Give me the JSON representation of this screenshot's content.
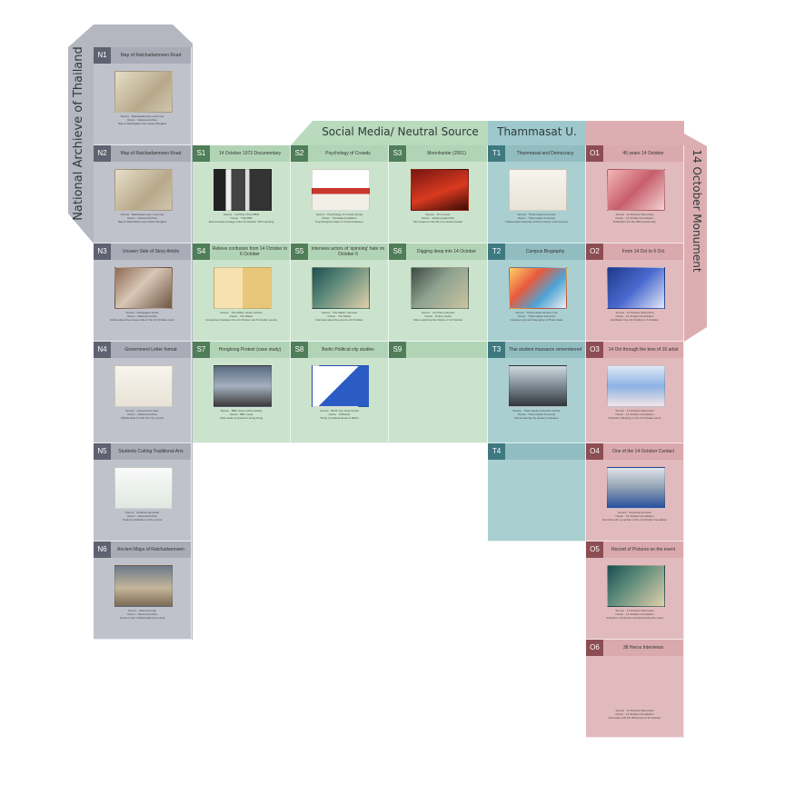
{
  "colors": {
    "national_archive": "#b4b6c0",
    "social_media": "#b9dabd",
    "thammasat": "#9ec8cb",
    "monument": "#dcaeb2"
  },
  "groups": {
    "national_archive": "National Archieve of Thailand",
    "social_media": "Social Media/ Neutral Source",
    "thammasat": "Thammasat U.",
    "monument": "14 October Monument"
  },
  "cells": {
    "N1": {
      "code": "N1",
      "title": "Map of Ratchadamnoen Road",
      "source": "Source  · Ratchadamnoen road map",
      "owner": "Owner  · National Archive",
      "note": "Map of Ratchadamnoen Road, Bangkok"
    },
    "N2": {
      "code": "N2",
      "title": "Map of Ratchadamnoen Road",
      "source": "Source  · Ratchadamnoen road map",
      "owner": "Owner  · National Archive",
      "note": "Map of Ratchadamnoen Road, Bangkok"
    },
    "N3": {
      "code": "N3",
      "title": "Unseen Side of Story Article",
      "source": "Source  · Newspaper article",
      "owner": "Owner  · National Archive",
      "note": "Article about the unseen side of the 14 October event"
    },
    "N4": {
      "code": "N4",
      "title": "Government Letter format",
      "source": "Source  · Government letter",
      "owner": "Owner  · National Archive",
      "note": "Official letter format from the period"
    },
    "N5": {
      "code": "N5",
      "title": "Students Cutting Traditional Arts",
      "source": "Source  · Students pamphlet",
      "owner": "Owner  · National Archive",
      "note": "Student publication of the period"
    },
    "N6": {
      "code": "N6",
      "title": "Ancient Maps of Ratchadamnoen",
      "source": "Source  · Historical map",
      "owner": "Owner  · National Archive",
      "note": "Ancient map of Ratchadamnoen area"
    },
    "S1": {
      "code": "S1",
      "title": "14 October 1973 Documentary",
      "source": "Source  · YouTube (Thai PBS)",
      "owner": "Owner  · Thai PBS",
      "note": "Documentary footage of the 14 October 1973 uprising"
    },
    "S2": {
      "code": "S2",
      "title": "Psychology of Crowds",
      "source": "Source  · Psychology of Crowds (book)",
      "owner": "Owner  · Translated publisher",
      "note": "Psychological study of crowd behaviour"
    },
    "S3": {
      "code": "S3",
      "title": "Moonhunter (2001)",
      "source": "Source  · Film poster",
      "owner": "Owner  · Sahamongkol Film",
      "note": "Film based on the life of a student leader"
    },
    "S4": {
      "code": "S4",
      "title": "Relieve confusion from 14 October to 6 October",
      "source": "Source  · The Matter (online article)",
      "owner": "Owner  · The Matter",
      "note": "Comparison between the 14 October and 6 October events"
    },
    "S5": {
      "code": "S5",
      "title": "Interview actors of 'spinning' hate on October 6",
      "source": "Source  · The Matter interview",
      "owner": "Owner  · The Matter",
      "note": "Interview about the events of 6 October"
    },
    "S6": {
      "code": "S6",
      "title": "Digging deep into 14 October",
      "source": "Source  · YouTube interview",
      "owner": "Owner  · Online media",
      "note": "Video exploring the history of 14 October"
    },
    "S7": {
      "code": "S7",
      "title": "Hongkong Protest (case study)",
      "source": "Source  · BBC news (online article)",
      "owner": "Owner  · BBC news",
      "note": "Case study of protest in Hong Kong"
    },
    "S8": {
      "code": "S8",
      "title": "Berlin Political city studies",
      "source": "Source  · Berlin city study (book)",
      "owner": "Owner  · Publisher",
      "note": "Study of political space in Berlin"
    },
    "S9": {
      "code": "S9",
      "title": ""
    },
    "T1": {
      "code": "T1",
      "title": "Thammasat and Democracy",
      "source": "Source  · Thammasat University",
      "owner": "Owner  · Thammasat University",
      "note": "Thammasat University and the history of democracy"
    },
    "T2": {
      "code": "T2",
      "title": "Campus Biography",
      "source": "Source  · Thammasat campus map",
      "owner": "Owner  · Thammasat University",
      "note": "Campus map and biography of Thammasat"
    },
    "T3": {
      "code": "T3",
      "title": "Thai student massacre remembered",
      "source": "Source  · Thammasat University archive",
      "owner": "Owner  · Thammasat University",
      "note": "Remembering the student massacre"
    },
    "T4": {
      "code": "T4",
      "title": ""
    },
    "O1": {
      "code": "O1",
      "title": "45 years 14 October",
      "source": "Source  · 14 October Monument",
      "owner": "Owner  · 14 October Foundation",
      "note": "Publication for the 45th anniversary"
    },
    "O2": {
      "code": "O2",
      "title": "From 14 Oct to 6 Oct",
      "source": "Source  · 14 October Monument",
      "owner": "Owner  · 14 October Foundation",
      "note": "Exhibition from 14 October to 6 October"
    },
    "O3": {
      "code": "O3",
      "title": "14 Oct through the lens of 16 artist",
      "source": "Source  · 14 October Monument",
      "owner": "Owner  · 14 October Foundation",
      "note": "Artworks reflecting on the 14 October event"
    },
    "O4": {
      "code": "O4",
      "title": "One of the 14 October Contact",
      "source": "Source  · Personal interview",
      "owner": "Owner  · 14 October Foundation",
      "note": "Interview with a member of the 14 October foundation"
    },
    "O5": {
      "code": "O5",
      "title": "Record of Pictures on the event",
      "source": "Source  · 14 October Monument",
      "owner": "Owner  · 14 October Foundation",
      "note": "Collection of pictures recorded during the event"
    },
    "O6": {
      "code": "O6",
      "title": "38 Heros Interviews",
      "source": "Source  · 14 October Monument",
      "owner": "Owner  · 14 October Foundation",
      "note": "Interviews with the 38 heroes of 14 October"
    }
  }
}
